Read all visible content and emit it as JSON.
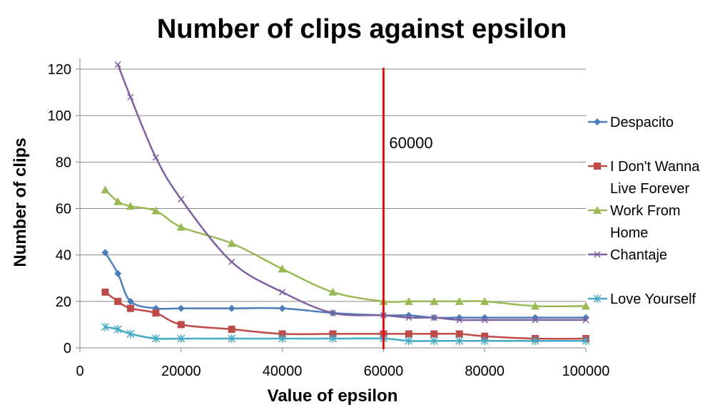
{
  "chart_data": {
    "type": "line",
    "title": "Number of clips against epsilon",
    "xlabel": "Value of epsilon",
    "ylabel": "Number of clips",
    "xlim": [
      0,
      100000
    ],
    "ylim": [
      0,
      120
    ],
    "x_ticks": [
      0,
      20000,
      40000,
      60000,
      80000,
      100000
    ],
    "y_ticks": [
      0,
      20,
      40,
      60,
      80,
      100,
      120
    ],
    "x_tick_labels": [
      "0",
      "20000",
      "40000",
      "60000",
      "80000",
      "100000"
    ],
    "y_tick_labels": [
      "0",
      "20",
      "40",
      "60",
      "80",
      "100",
      "120"
    ],
    "grid": "horizontal",
    "legend_position": "right",
    "series": [
      {
        "name": "Despacito",
        "color": "#4a7ebb",
        "marker": "diamond",
        "x": [
          5000,
          7500,
          10000,
          15000,
          20000,
          30000,
          40000,
          50000,
          60000,
          65000,
          70000,
          75000,
          80000,
          90000,
          100000
        ],
        "y": [
          41,
          32,
          20,
          17,
          17,
          17,
          17,
          15,
          14,
          14,
          13,
          13,
          13,
          13,
          13
        ]
      },
      {
        "name": "I Don't Wanna Live Forever",
        "legend_lines": [
          "I Don't Wanna",
          "Live Forever"
        ],
        "color": "#be4b48",
        "marker": "square",
        "x": [
          5000,
          7500,
          10000,
          15000,
          20000,
          30000,
          40000,
          50000,
          60000,
          65000,
          70000,
          75000,
          80000,
          90000,
          100000
        ],
        "y": [
          24,
          20,
          17,
          15,
          10,
          8,
          6,
          6,
          6,
          6,
          6,
          6,
          5,
          4,
          4
        ]
      },
      {
        "name": "Work From Home",
        "legend_lines": [
          "Work From",
          "Home"
        ],
        "color": "#98b954",
        "marker": "triangle",
        "x": [
          5000,
          7500,
          10000,
          15000,
          20000,
          30000,
          40000,
          50000,
          60000,
          65000,
          70000,
          75000,
          80000,
          90000,
          100000
        ],
        "y": [
          68,
          63,
          61,
          59,
          52,
          45,
          34,
          24,
          20,
          20,
          20,
          20,
          20,
          18,
          18
        ]
      },
      {
        "name": "Chantaje",
        "color": "#7d60a0",
        "marker": "x",
        "x": [
          7500,
          10000,
          15000,
          20000,
          30000,
          40000,
          50000,
          60000,
          65000,
          70000,
          75000,
          80000,
          90000,
          100000
        ],
        "y": [
          122,
          108,
          82,
          64,
          37,
          24,
          15,
          14,
          13,
          13,
          12,
          12,
          12,
          12
        ]
      },
      {
        "name": "Love Yourself",
        "color": "#46aac5",
        "marker": "star",
        "x": [
          5000,
          7500,
          10000,
          15000,
          20000,
          30000,
          40000,
          50000,
          60000,
          65000,
          70000,
          75000,
          80000,
          90000,
          100000
        ],
        "y": [
          9,
          8,
          6,
          4,
          4,
          4,
          4,
          4,
          4,
          3,
          3,
          3,
          3,
          3,
          3
        ]
      }
    ],
    "annotations": [
      {
        "type": "vertical_line",
        "x": 60000,
        "color": "#e01010",
        "label": "60000"
      }
    ]
  }
}
